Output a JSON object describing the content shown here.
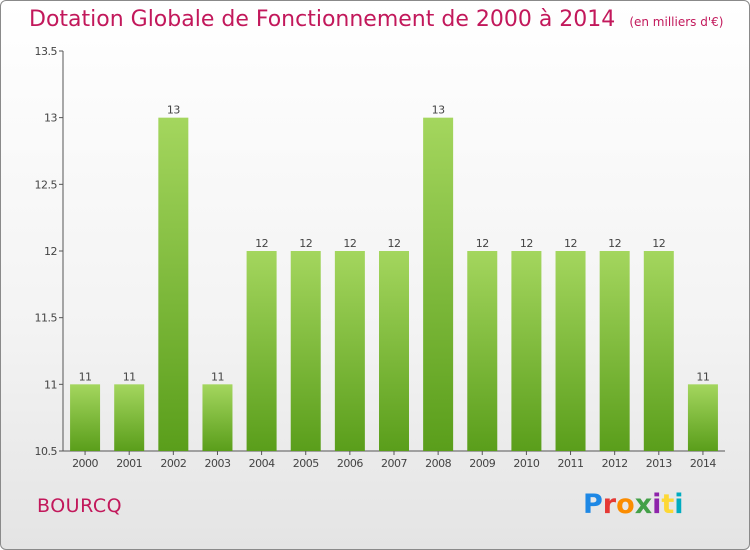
{
  "title": "Dotation Globale de Fonctionnement de 2000 à 2014",
  "unit_note": "(en milliers d'€)",
  "commune": "BOURCQ",
  "logo": {
    "letters": [
      "P",
      "r",
      "o",
      "x",
      "i",
      "t",
      "i"
    ],
    "colors": [
      "#1e88e5",
      "#e53935",
      "#fb8c00",
      "#43a047",
      "#8e24aa",
      "#fdd835",
      "#00acc1"
    ]
  },
  "colors": {
    "title": "#c2185b",
    "bar_top": "#a4d65e",
    "bar_bottom": "#5a9e1b",
    "axis": "#555555"
  },
  "chart_data": {
    "type": "bar",
    "categories": [
      "2000",
      "2001",
      "2002",
      "2003",
      "2004",
      "2005",
      "2006",
      "2007",
      "2008",
      "2009",
      "2010",
      "2011",
      "2012",
      "2013",
      "2014"
    ],
    "values": [
      11,
      11,
      13,
      11,
      12,
      12,
      12,
      12,
      13,
      12,
      12,
      12,
      12,
      12,
      11
    ],
    "data_labels": [
      "11",
      "11",
      "13",
      "11",
      "12",
      "12",
      "12",
      "12",
      "13",
      "12",
      "12",
      "12",
      "12",
      "12",
      "11"
    ],
    "ylim": [
      10.5,
      13.5
    ],
    "yticks": [
      10.5,
      11,
      11.5,
      12,
      12.5,
      13,
      13.5
    ],
    "ytick_labels": [
      "10.5",
      "11",
      "11.5",
      "12",
      "12.5",
      "13",
      "13.5"
    ],
    "grid": false
  }
}
